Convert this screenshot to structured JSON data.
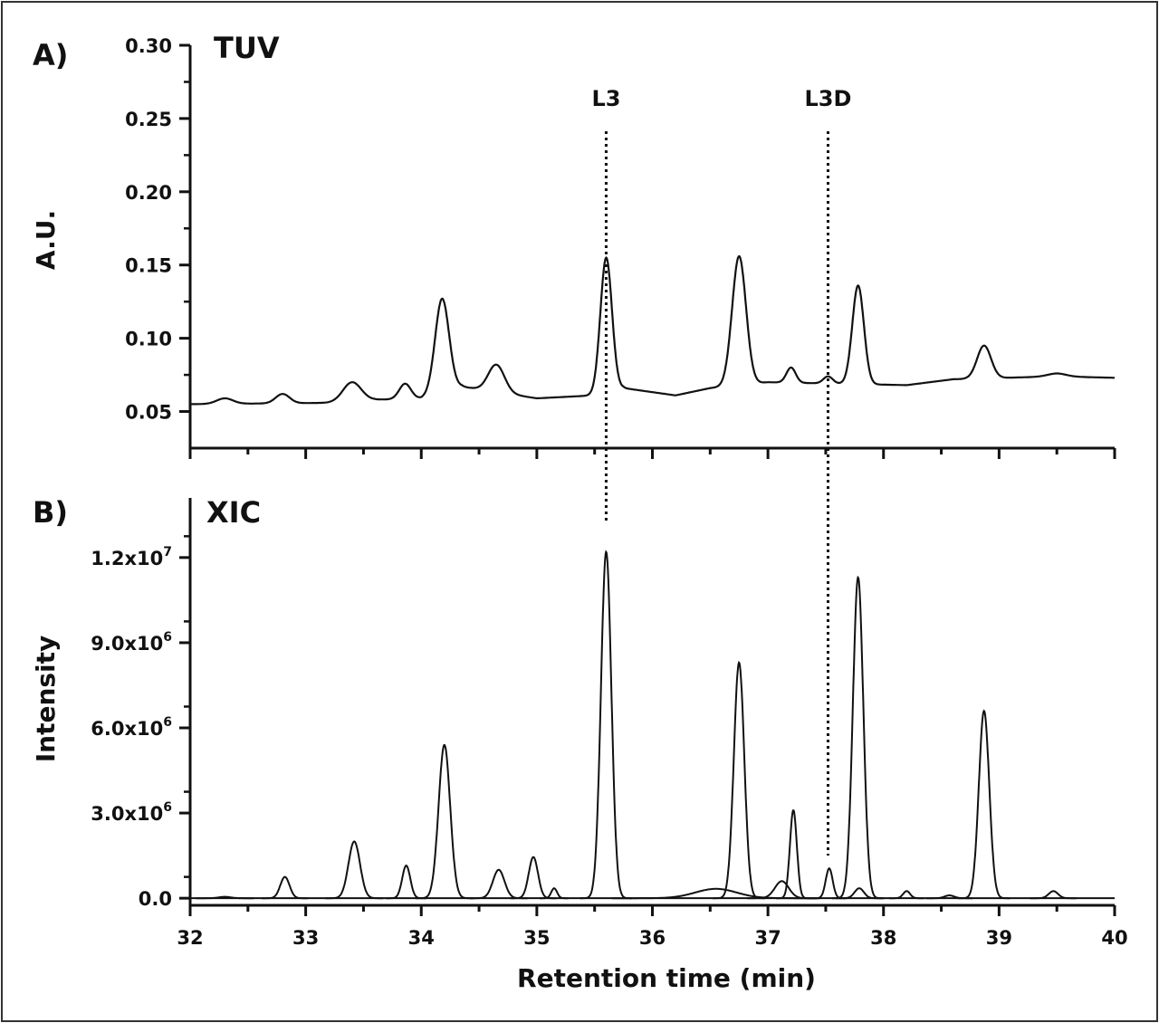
{
  "chart_data": [
    {
      "type": "line",
      "panel_label": "A)",
      "title": "TUV",
      "ylabel": "A.U.",
      "xlabel": "",
      "xlim": [
        32,
        40
      ],
      "ylim": [
        0.025,
        0.3
      ],
      "yticks": [
        "0.05",
        "0.10",
        "0.15",
        "0.20",
        "0.25",
        "0.30"
      ],
      "ytick_values": [
        0.05,
        0.1,
        0.15,
        0.2,
        0.25,
        0.3
      ],
      "grid": false,
      "baseline": {
        "x": [
          32,
          33.3,
          33.6,
          34.0,
          34.35,
          35.0,
          35.5,
          35.75,
          36.2,
          36.5,
          37.0,
          38.2,
          38.6,
          39.5,
          40
        ],
        "y": [
          0.055,
          0.056,
          0.058,
          0.059,
          0.067,
          0.059,
          0.061,
          0.066,
          0.061,
          0.066,
          0.07,
          0.068,
          0.072,
          0.074,
          0.073
        ]
      },
      "peaks": [
        {
          "x": 32.3,
          "y": 0.059,
          "width": 0.07
        },
        {
          "x": 32.8,
          "y": 0.062,
          "width": 0.06
        },
        {
          "x": 33.4,
          "y": 0.07,
          "width": 0.08
        },
        {
          "x": 33.86,
          "y": 0.069,
          "width": 0.05
        },
        {
          "x": 34.18,
          "y": 0.127,
          "width": 0.06
        },
        {
          "x": 34.65,
          "y": 0.082,
          "width": 0.07
        },
        {
          "x": 35.6,
          "y": 0.155,
          "width": 0.05
        },
        {
          "x": 36.75,
          "y": 0.156,
          "width": 0.06
        },
        {
          "x": 37.2,
          "y": 0.08,
          "width": 0.04
        },
        {
          "x": 37.52,
          "y": 0.074,
          "width": 0.04
        },
        {
          "x": 37.78,
          "y": 0.136,
          "width": 0.05
        },
        {
          "x": 38.87,
          "y": 0.095,
          "width": 0.06
        },
        {
          "x": 39.5,
          "y": 0.076,
          "width": 0.08
        }
      ],
      "annotations": [
        {
          "label": "L3",
          "x": 35.6
        },
        {
          "label": "L3D",
          "x": 37.52
        }
      ]
    },
    {
      "type": "line",
      "panel_label": "B)",
      "title": "XIC",
      "ylabel": "Intensity",
      "xlabel": "Retention time (min)",
      "xlim": [
        32,
        40
      ],
      "ylim": [
        -250000,
        14100000
      ],
      "xticks": [
        "32",
        "33",
        "34",
        "35",
        "36",
        "37",
        "38",
        "39",
        "40"
      ],
      "yticks": [
        {
          "mantissa": "0.0",
          "exp": ""
        },
        {
          "mantissa": "3.0x10",
          "exp": "6"
        },
        {
          "mantissa": "6.0x10",
          "exp": "6"
        },
        {
          "mantissa": "9.0x10",
          "exp": "6"
        },
        {
          "mantissa": "1.2x10",
          "exp": "7"
        }
      ],
      "ytick_values": [
        0,
        3000000,
        6000000,
        9000000,
        12000000
      ],
      "grid": false,
      "peaks": [
        {
          "x": 32.3,
          "y": 50000,
          "width": 0.05
        },
        {
          "x": 32.82,
          "y": 750000,
          "width": 0.04
        },
        {
          "x": 33.42,
          "y": 2000000,
          "width": 0.05
        },
        {
          "x": 33.87,
          "y": 1150000,
          "width": 0.035
        },
        {
          "x": 34.2,
          "y": 5400000,
          "width": 0.05
        },
        {
          "x": 34.67,
          "y": 1000000,
          "width": 0.05
        },
        {
          "x": 34.97,
          "y": 1450000,
          "width": 0.04
        },
        {
          "x": 35.15,
          "y": 350000,
          "width": 0.025
        },
        {
          "x": 35.6,
          "y": 12200000,
          "width": 0.045
        },
        {
          "x": 36.55,
          "y": 330000,
          "width": 0.18
        },
        {
          "x": 36.75,
          "y": 8300000,
          "width": 0.045
        },
        {
          "x": 37.12,
          "y": 600000,
          "width": 0.06
        },
        {
          "x": 37.22,
          "y": 3100000,
          "width": 0.03
        },
        {
          "x": 37.53,
          "y": 1050000,
          "width": 0.03
        },
        {
          "x": 37.78,
          "y": 11300000,
          "width": 0.045
        },
        {
          "x": 37.79,
          "y": 350000,
          "width": 0.04
        },
        {
          "x": 38.2,
          "y": 250000,
          "width": 0.03
        },
        {
          "x": 38.57,
          "y": 100000,
          "width": 0.04
        },
        {
          "x": 38.87,
          "y": 6600000,
          "width": 0.045
        },
        {
          "x": 39.47,
          "y": 250000,
          "width": 0.04
        }
      ]
    }
  ]
}
